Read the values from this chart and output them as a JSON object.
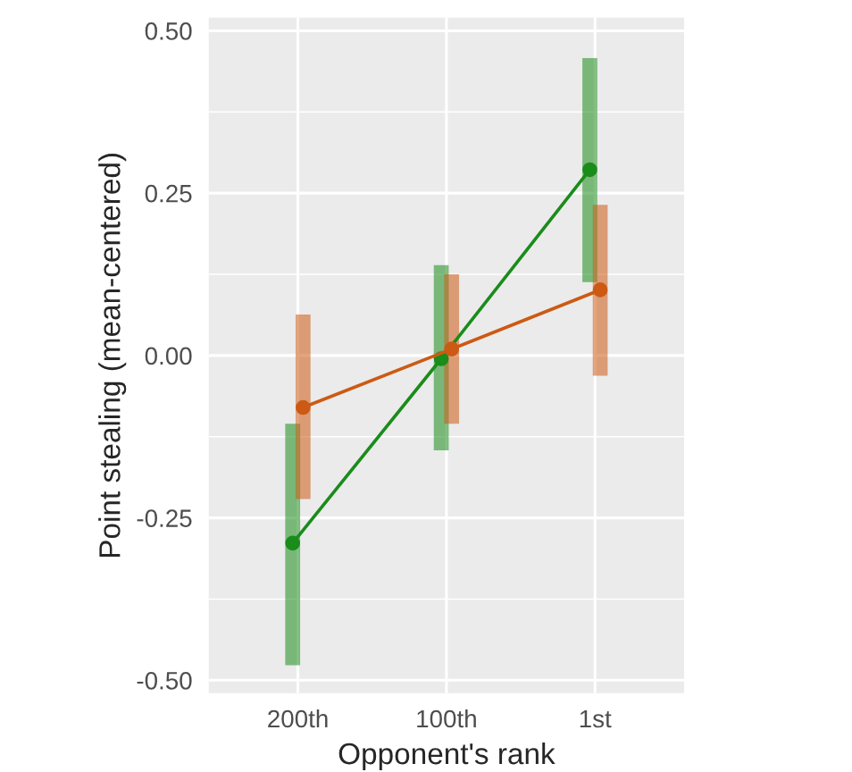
{
  "chart_data": {
    "type": "line",
    "xlabel": "Opponent's rank",
    "ylabel": "Point stealing (mean-centered)",
    "categories": [
      "200th",
      "100th",
      "1st"
    ],
    "series": [
      {
        "color": "#1a8c1a",
        "values": [
          -0.289,
          -0.005,
          0.286
        ],
        "errors": [
          [
            -0.477,
            -0.105
          ],
          [
            -0.146,
            0.139
          ],
          [
            0.113,
            0.458
          ]
        ]
      },
      {
        "color": "#cc5a14",
        "values": [
          -0.08,
          0.01,
          0.101
        ],
        "errors": [
          [
            -0.221,
            0.063
          ],
          [
            -0.105,
            0.125
          ],
          [
            -0.031,
            0.232
          ]
        ]
      }
    ],
    "ylim": [
      -0.52,
      0.52
    ],
    "yticks": [
      {
        "value": -0.5,
        "label": "-0.50"
      },
      {
        "value": -0.25,
        "label": "-0.25"
      },
      {
        "value": 0,
        "label": "0.00"
      },
      {
        "value": 0.25,
        "label": "0.25"
      },
      {
        "value": 0.5,
        "label": "0.50"
      }
    ],
    "grid": true,
    "marker": "circle",
    "line_style": "solid"
  }
}
